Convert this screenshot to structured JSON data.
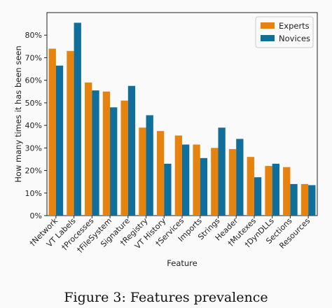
{
  "chart_data": {
    "type": "bar",
    "xlabel": "Feature",
    "ylabel": "How many times it has been seen",
    "ylim": [
      0,
      90
    ],
    "yticks": [
      "0%",
      "10%",
      "20%",
      "30%",
      "40%",
      "50%",
      "60%",
      "70%",
      "80%"
    ],
    "categories": [
      "†Network",
      "VT Labels",
      "†Processes",
      "†FileSystem",
      "Signature",
      "†Registry",
      "VT History",
      "†Services",
      "Imports",
      "Strings",
      "Header",
      "†Mutexes",
      "†DynDLLs",
      "Sections",
      "Resources"
    ],
    "series": [
      {
        "name": "Experts",
        "color": "#e6820e",
        "values": [
          74,
          73,
          59,
          55,
          51,
          39,
          37.5,
          35.5,
          31.5,
          30,
          29.5,
          26,
          22,
          21.5,
          14
        ]
      },
      {
        "name": "Novices",
        "color": "#0f6f9a",
        "values": [
          66.5,
          85.5,
          55.5,
          48,
          57.5,
          44.5,
          23,
          31.5,
          25.5,
          39,
          34,
          17,
          23,
          14,
          13.5
        ]
      }
    ],
    "legend_position": "top-right",
    "grid": false
  },
  "caption": "Figure 3: Features prevalence"
}
